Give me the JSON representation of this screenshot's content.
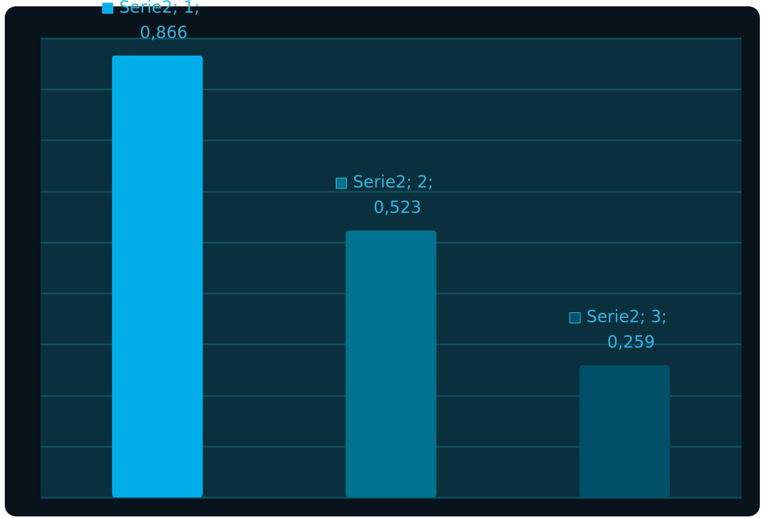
{
  "chart_data": {
    "type": "bar",
    "categories": [
      "1",
      "2",
      "3"
    ],
    "series": [
      {
        "name": "Serie2",
        "values": [
          0.866,
          0.523,
          0.259
        ],
        "colors": [
          "#00aee9",
          "#007391",
          "#00506a"
        ]
      }
    ],
    "data_labels": [
      {
        "line1": "Serie2; 1;",
        "line2": "0,866"
      },
      {
        "line1": "Serie2; 2;",
        "line2": "0,523"
      },
      {
        "line1": "Serie2; 3;",
        "line2": "0,259"
      }
    ],
    "ylim": [
      0,
      0.9
    ],
    "grid": true,
    "title": "",
    "xlabel": "",
    "ylabel": "",
    "colors": {
      "frame": "#08131b",
      "plot_area": "#0a2f3d",
      "gridline": "#0f5567",
      "label_text": "#2fb7e2"
    }
  }
}
